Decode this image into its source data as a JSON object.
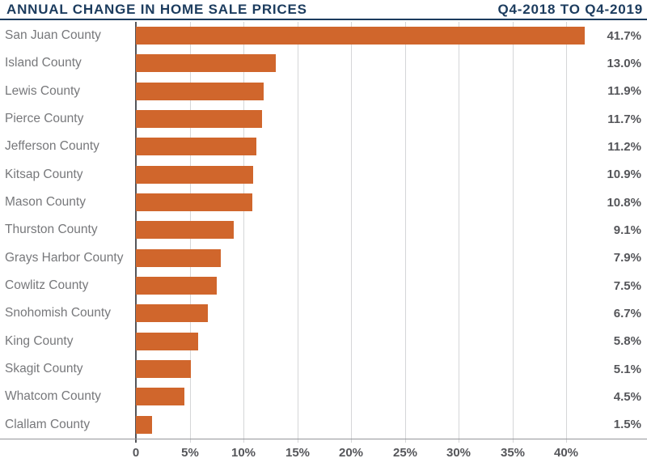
{
  "header": {
    "title": "ANNUAL CHANGE IN HOME SALE PRICES",
    "period": "Q4-2018 TO Q4-2019"
  },
  "colors": {
    "navy": "#1C3C5E",
    "orange": "#D0662C",
    "category_label_gray": "#77787B",
    "value_label_gray": "#55565A",
    "gridline_gray": "#D5D6D8",
    "axis_line_gray": "#94969A"
  },
  "chart_data": {
    "type": "bar",
    "orientation": "horizontal",
    "title": "ANNUAL CHANGE IN HOME SALE PRICES",
    "subtitle": "Q4-2018 TO Q4-2019",
    "categories": [
      "San Juan County",
      "Island County",
      "Lewis County",
      "Pierce County",
      "Jefferson County",
      "Kitsap County",
      "Mason County",
      "Thurston County",
      "Grays Harbor County",
      "Cowlitz County",
      "Snohomish County",
      "King County",
      "Skagit County",
      "Whatcom County",
      "Clallam County"
    ],
    "values": [
      41.7,
      13.0,
      11.9,
      11.7,
      11.2,
      10.9,
      10.8,
      9.1,
      7.9,
      7.5,
      6.7,
      5.8,
      5.1,
      4.5,
      1.5
    ],
    "value_labels": [
      "41.7%",
      "13.0%",
      "11.9%",
      "11.7%",
      "11.2%",
      "10.9%",
      "10.8%",
      "9.1%",
      "7.9%",
      "7.5%",
      "6.7%",
      "5.8%",
      "5.1%",
      "4.5%",
      "1.5%"
    ],
    "x_tick_values": [
      0,
      5,
      10,
      15,
      20,
      25,
      30,
      35,
      40
    ],
    "x_ticks": [
      "0",
      "5%",
      "10%",
      "15%",
      "20%",
      "25%",
      "30%",
      "35%",
      "40%"
    ],
    "xlim": [
      0,
      47.5
    ],
    "grid": "vertical",
    "legend": "none",
    "value_labels_position": "right-edge"
  }
}
